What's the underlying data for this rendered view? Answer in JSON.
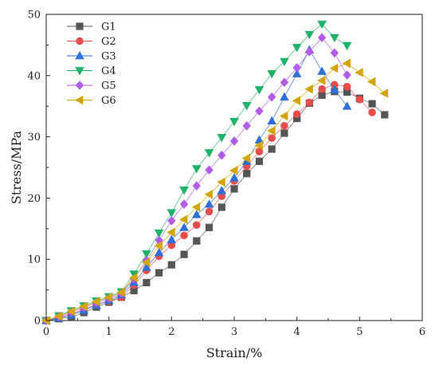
{
  "chart_data": {
    "type": "line",
    "title": "",
    "xlabel": "Strain/%",
    "ylabel": "Stress/MPa",
    "xlim": [
      0,
      6
    ],
    "ylim": [
      0,
      50
    ],
    "xticks": [
      0,
      1,
      2,
      3,
      4,
      5,
      6
    ],
    "yticks": [
      0,
      10,
      20,
      30,
      40,
      50
    ],
    "grid": false,
    "legend_position": "top-left",
    "series": [
      {
        "name": "G1",
        "color": "#555555",
        "marker": "square",
        "x": [
          0,
          0.2,
          0.4,
          0.6,
          0.8,
          1.0,
          1.2,
          1.4,
          1.6,
          1.8,
          2.0,
          2.2,
          2.4,
          2.6,
          2.8,
          3.0,
          3.2,
          3.4,
          3.6,
          3.8,
          4.0,
          4.2,
          4.4,
          4.6,
          4.8,
          5.0,
          5.2,
          5.4
        ],
        "y": [
          0,
          0.3,
          0.6,
          1.3,
          2.2,
          3.0,
          3.8,
          4.9,
          6.2,
          7.8,
          9.1,
          10.8,
          13.0,
          15.2,
          18.5,
          21.5,
          24.0,
          26.0,
          28.0,
          30.6,
          33.0,
          35.5,
          36.8,
          37.4,
          37.3,
          36.3,
          35.4,
          33.6
        ]
      },
      {
        "name": "G2",
        "color": "#e84d4d",
        "marker": "circle",
        "x": [
          0,
          0.2,
          0.4,
          0.6,
          0.8,
          1.0,
          1.2,
          1.4,
          1.6,
          1.8,
          2.0,
          2.2,
          2.4,
          2.6,
          2.8,
          3.0,
          3.2,
          3.4,
          3.6,
          3.8,
          4.0,
          4.2,
          4.4,
          4.6,
          4.8,
          5.0,
          5.2
        ],
        "y": [
          0,
          0.5,
          1.0,
          1.8,
          2.6,
          3.2,
          3.8,
          5.8,
          8.2,
          10.5,
          12.3,
          13.9,
          15.6,
          17.8,
          20.3,
          22.8,
          25.2,
          27.6,
          29.8,
          31.8,
          33.7,
          35.6,
          37.8,
          38.5,
          38.2,
          36.1,
          34.0
        ]
      },
      {
        "name": "G3",
        "color": "#2f6fd6",
        "marker": "triangle-up",
        "x": [
          0,
          0.2,
          0.4,
          0.6,
          0.8,
          1.0,
          1.2,
          1.4,
          1.6,
          1.8,
          2.0,
          2.2,
          2.4,
          2.6,
          2.8,
          3.0,
          3.2,
          3.4,
          3.6,
          3.8,
          4.0,
          4.2,
          4.4,
          4.6,
          4.8
        ],
        "y": [
          0,
          0.4,
          0.9,
          1.7,
          2.5,
          3.3,
          4.2,
          6.2,
          8.7,
          11.1,
          13.2,
          15.2,
          17.3,
          19.0,
          21.2,
          23.3,
          26.0,
          29.5,
          32.6,
          36.5,
          40.3,
          44.2,
          40.7,
          37.7,
          35.0
        ]
      },
      {
        "name": "G4",
        "color": "#1fb36a",
        "marker": "triangle-down",
        "x": [
          0,
          0.2,
          0.4,
          0.6,
          0.8,
          1.0,
          1.2,
          1.4,
          1.6,
          1.8,
          2.0,
          2.2,
          2.4,
          2.6,
          2.8,
          3.0,
          3.2,
          3.4,
          3.6,
          3.8,
          4.0,
          4.2,
          4.4,
          4.6,
          4.8
        ],
        "y": [
          0,
          0.8,
          1.6,
          2.4,
          3.2,
          3.9,
          4.7,
          7.6,
          10.9,
          14.3,
          17.6,
          21.3,
          24.8,
          27.4,
          29.9,
          32.5,
          35.1,
          37.7,
          40.3,
          42.3,
          44.6,
          46.7,
          48.4,
          46.2,
          44.9
        ]
      },
      {
        "name": "G5",
        "color": "#b15ce6",
        "marker": "diamond",
        "x": [
          0,
          0.2,
          0.4,
          0.6,
          0.8,
          1.0,
          1.2,
          1.4,
          1.6,
          1.8,
          2.0,
          2.2,
          2.4,
          2.6,
          2.8,
          3.0,
          3.2,
          3.4,
          3.6,
          3.8,
          4.0,
          4.2,
          4.4,
          4.6,
          4.8
        ],
        "y": [
          0,
          0.6,
          1.3,
          2.1,
          2.9,
          3.6,
          4.4,
          6.8,
          9.8,
          13.1,
          16.3,
          19.0,
          22.0,
          24.6,
          27.0,
          29.3,
          31.8,
          34.2,
          36.5,
          38.9,
          41.3,
          43.9,
          46.2,
          43.7,
          40.1
        ]
      },
      {
        "name": "G6",
        "color": "#d4a400",
        "marker": "triangle-left",
        "x": [
          0,
          0.2,
          0.4,
          0.6,
          0.8,
          1.0,
          1.2,
          1.4,
          1.6,
          1.8,
          2.0,
          2.2,
          2.4,
          2.6,
          2.8,
          3.0,
          3.2,
          3.4,
          3.6,
          3.8,
          4.0,
          4.2,
          4.4,
          4.6,
          4.8,
          5.0,
          5.2,
          5.4
        ],
        "y": [
          0,
          0.7,
          1.5,
          2.3,
          3.1,
          3.8,
          4.6,
          7.0,
          9.5,
          12.2,
          14.4,
          16.5,
          18.5,
          20.6,
          22.6,
          24.5,
          26.5,
          28.6,
          31.0,
          33.4,
          35.9,
          37.8,
          39.2,
          41.2,
          42.0,
          40.5,
          39.0,
          37.1
        ]
      }
    ]
  }
}
